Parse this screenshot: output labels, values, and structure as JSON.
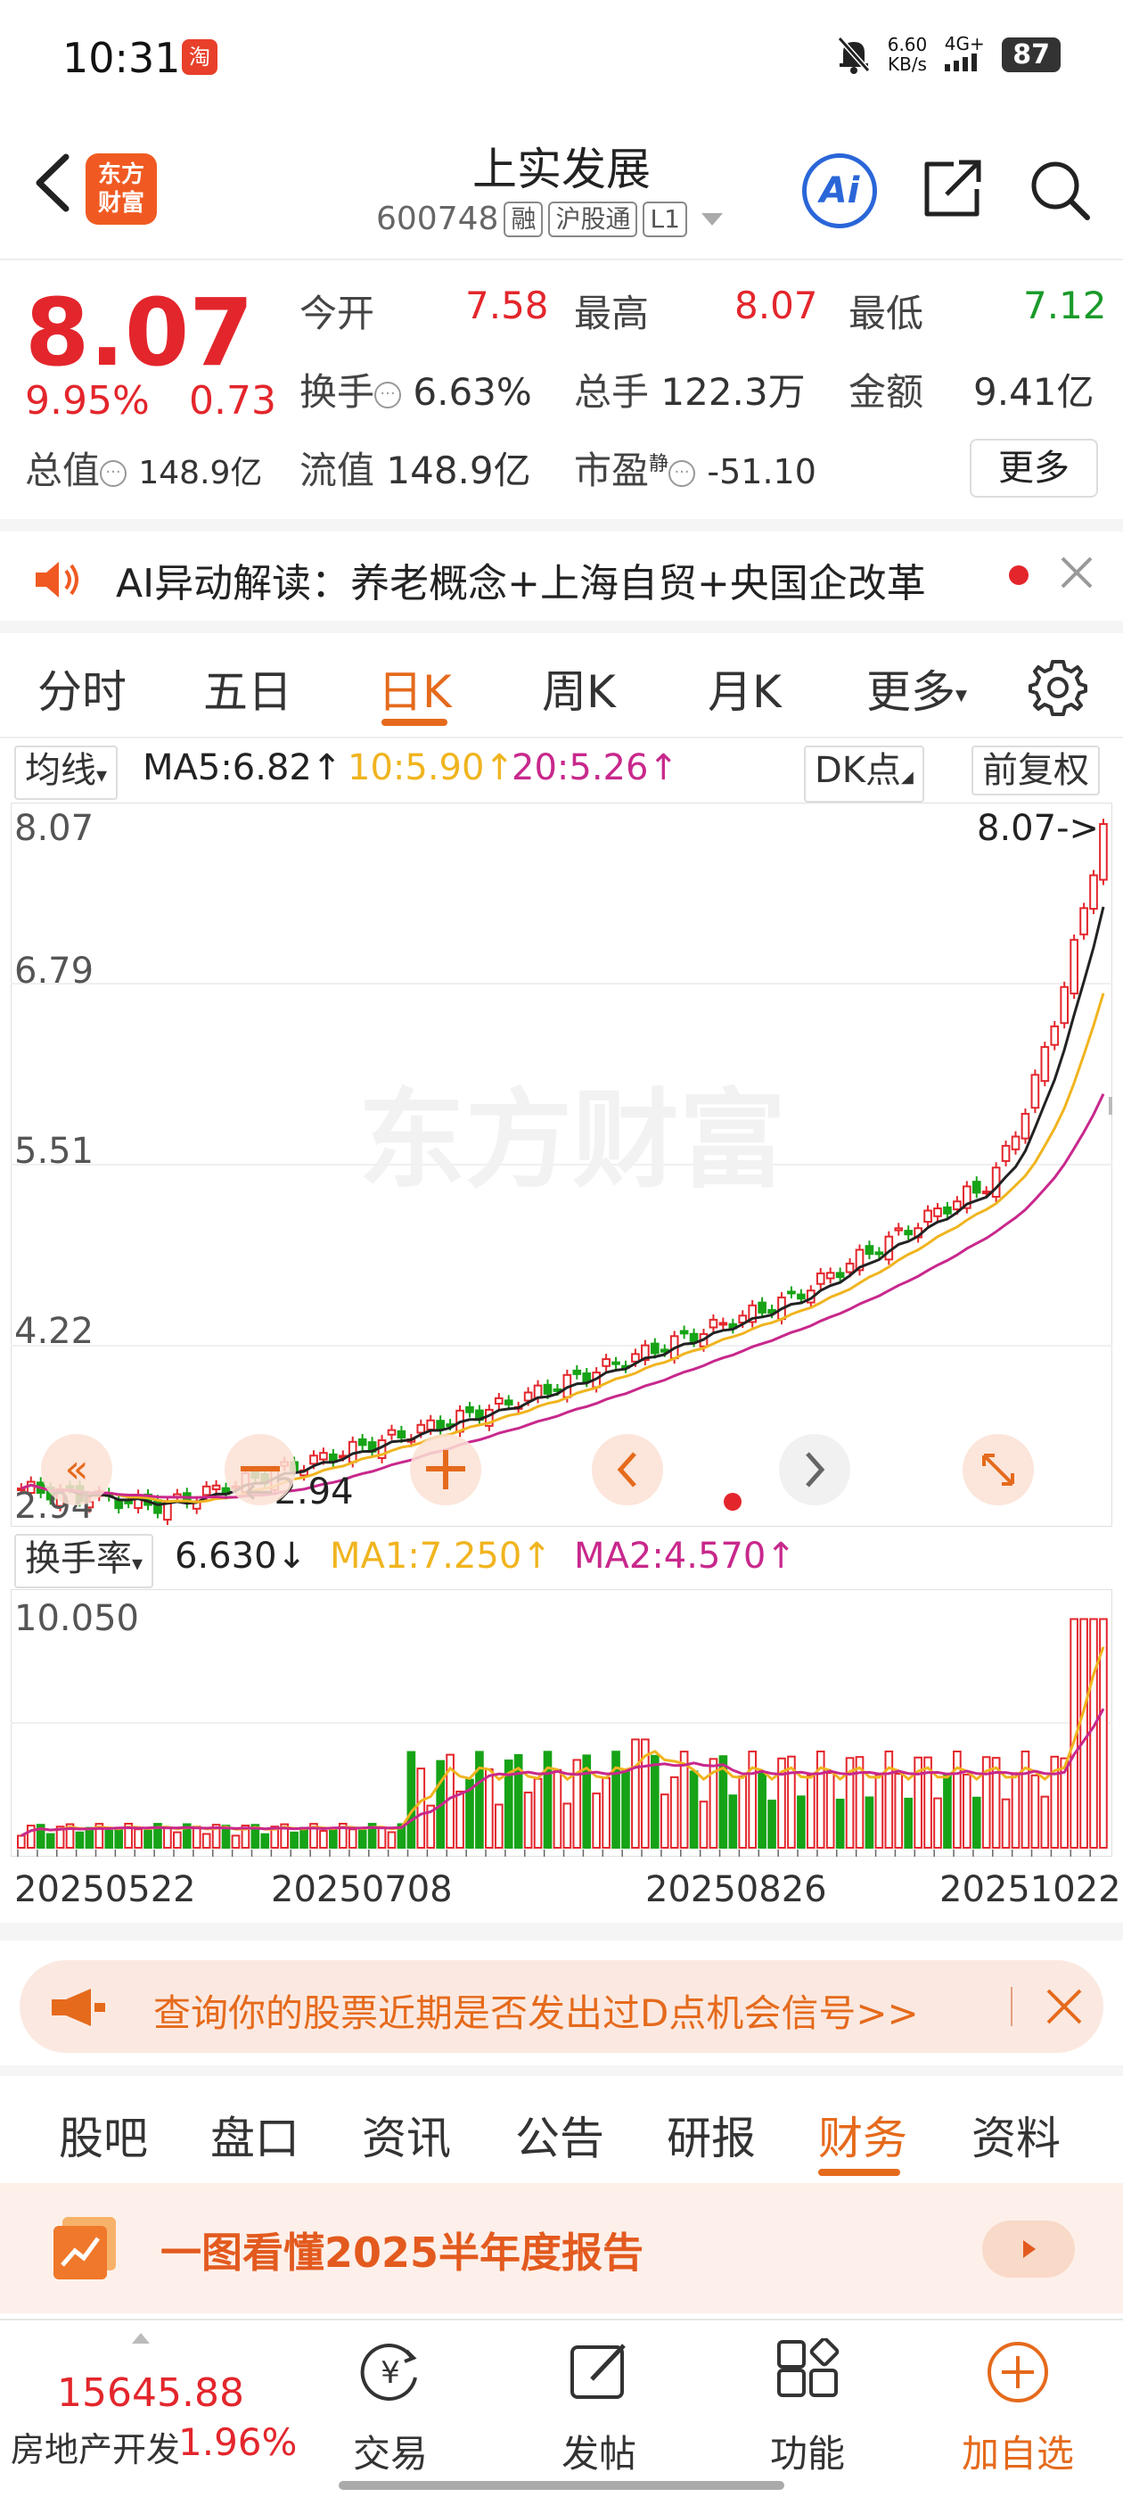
{
  "status": {
    "time": "10:31",
    "app_badge": "淘",
    "net_speed": "6.60",
    "net_unit": "KB/s",
    "signal": "4G+",
    "battery": "87"
  },
  "header": {
    "logo_line1": "东方",
    "logo_line2": "财富",
    "stock_name": "上实发展",
    "stock_code": "600748",
    "tags": [
      "融",
      "沪股通",
      "L1"
    ],
    "ai_label": "Ai"
  },
  "quote": {
    "price": "8.07",
    "change_pct": "9.95%",
    "change": "0.73",
    "open_label": "今开",
    "open": "7.58",
    "high_label": "最高",
    "high": "8.07",
    "low_label": "最低",
    "low": "7.12",
    "turnover_label": "换手",
    "turnover": "6.63%",
    "volume_label": "总手",
    "volume": "122.3万",
    "amount_label": "金额",
    "amount": "9.41亿",
    "mktcap_label": "总值",
    "mktcap": "148.9亿",
    "float_label": "流值",
    "float": "148.9亿",
    "pe_label": "市盈",
    "pe_sup": "静",
    "pe": "-51.10",
    "more_label": "更多"
  },
  "ai_bar": {
    "text": "AI异动解读：养老概念+上海自贸+央国企改革"
  },
  "period_tabs": [
    "分时",
    "五日",
    "日K",
    "周K",
    "月K",
    "更多"
  ],
  "chart_head": {
    "ma_btn": "均线",
    "ma5": "MA5:6.82",
    "ma10": "10:5.90",
    "ma20": "20:5.26",
    "dk_btn": "DK点",
    "fq_btn": "前复权"
  },
  "kline_labels": {
    "y_top": "8.07",
    "y2": "6.79",
    "y3": "5.51",
    "y4": "4.22",
    "y_bottom": "2.94",
    "price_tag": "8.07->",
    "low_tag": "2.94",
    "watermark": "东方财富"
  },
  "vol_head": {
    "btn": "换手率",
    "value": "6.630",
    "ma1": "MA1:7.250",
    "ma2": "MA2:4.570",
    "y_top": "10.050"
  },
  "dates": [
    "20250522",
    "20250708",
    "20250826",
    "20251022"
  ],
  "colors": {
    "up": "#e3262c",
    "down": "#17a317",
    "ma5": "#222222",
    "ma10": "#f0b41e",
    "ma20": "#c8288c",
    "accent": "#e56a1c"
  },
  "banner": {
    "text": "查询你的股票近期是否发出过D点机会信号>>"
  },
  "info_tabs": [
    "股吧",
    "盘口",
    "资讯",
    "公告",
    "研报",
    "财务",
    "资料"
  ],
  "report": {
    "text": "一图看懂2025半年度报告"
  },
  "bottom": {
    "index_value": "15645.88",
    "index_name": "房地产开发",
    "index_pct": "1.96%",
    "items": [
      "交易",
      "发帖",
      "功能",
      "加自选"
    ]
  }
}
